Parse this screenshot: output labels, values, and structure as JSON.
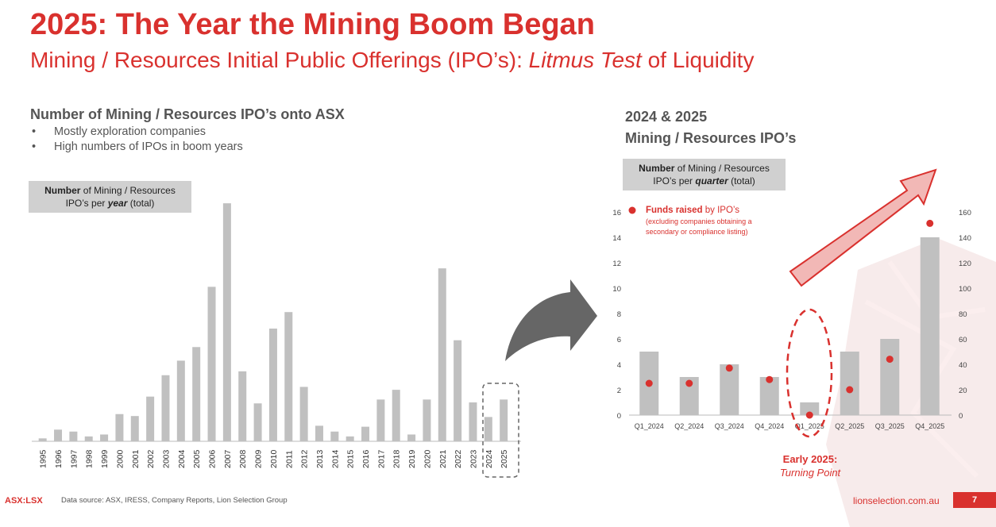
{
  "header": {
    "title": "2025: The Year the Mining Boom Began",
    "subtitle_pre": "Mining / Resources Initial Public Offerings (IPO’s): ",
    "subtitle_em": "Litmus Test",
    "subtitle_post": " of Liquidity"
  },
  "left_panel": {
    "heading": "Number of Mining / Resources IPO’s onto ASX",
    "bullets": [
      "Mostly exploration companies",
      "High numbers of IPOs in boom years"
    ],
    "label_bold": "Number",
    "label_mid": " of Mining / Resources",
    "label_line2_pre": "IPO’s per ",
    "label_line2_em": "year",
    "label_line2_post": " (total)"
  },
  "right_panel": {
    "heading_line1": "2024 & 2025",
    "heading_line2": "Mining / Resources IPO’s",
    "label_bold": "Number",
    "label_mid": " of Mining / Resources",
    "label_line2_pre": "IPO’s per ",
    "label_line2_em": "quarter",
    "label_line2_post": " (total)",
    "legend_bold": "Funds raised",
    "legend_rest": " by IPO’s",
    "legend_note1": "(excluding companies obtaining a",
    "legend_note2": "secondary or compliance listing)",
    "early_line1": "Early 2025:",
    "early_line2": "Turning Point"
  },
  "footer": {
    "ticker": "ASX:LSX",
    "source": "Data source: ASX, IRESS, Company Reports, Lion Selection Group",
    "website": "lionselection.com.au",
    "page": "7"
  },
  "colors": {
    "accent": "#d9312e",
    "bar": "#c0c0c0",
    "label_bg": "#d0d0d0",
    "arrow_dark": "#666666",
    "arrow_pink": "#f2b8b6"
  },
  "chart_data": [
    {
      "type": "bar",
      "title": "Number of Mining / Resources IPO’s per year (total)",
      "categories": [
        "1995",
        "1996",
        "1997",
        "1998",
        "1999",
        "2000",
        "2001",
        "2002",
        "2003",
        "2004",
        "2005",
        "2006",
        "2007",
        "2008",
        "2009",
        "2010",
        "2011",
        "2012",
        "2013",
        "2014",
        "2015",
        "2016",
        "2017",
        "2018",
        "2019",
        "2020",
        "2021",
        "2022",
        "2023",
        "2024",
        "2025"
      ],
      "values": [
        3,
        12,
        10,
        5,
        7,
        28,
        26,
        46,
        68,
        83,
        97,
        159,
        245,
        72,
        39,
        116,
        133,
        56,
        16,
        10,
        5,
        15,
        43,
        53,
        7,
        43,
        178,
        104,
        40,
        25,
        43
      ],
      "ylim": [
        0,
        250
      ],
      "grid": false,
      "highlight": [
        "2024",
        "2025"
      ]
    },
    {
      "type": "bar+scatter",
      "title": "Number of Mining / Resources IPO’s per quarter (total)",
      "categories": [
        "Q1_2024",
        "Q2_2024",
        "Q3_2024",
        "Q4_2024",
        "Q1_2025",
        "Q2_2025",
        "Q3_2025",
        "Q4_2025"
      ],
      "series": [
        {
          "name": "IPO count",
          "axis": "left",
          "values": [
            5,
            3,
            4,
            3,
            1,
            5,
            6,
            14
          ]
        },
        {
          "name": "Funds raised by IPO’s",
          "axis": "right",
          "values": [
            25,
            25,
            37,
            28,
            0,
            20,
            44,
            151
          ]
        }
      ],
      "left_ticks": [
        0,
        2,
        4,
        6,
        8,
        10,
        12,
        14,
        16
      ],
      "right_ticks": [
        0,
        20,
        40,
        60,
        80,
        100,
        120,
        140,
        160
      ],
      "ylim_left": [
        0,
        16
      ],
      "ylim_right": [
        0,
        160
      ],
      "highlight": [
        "Q1_2025"
      ]
    }
  ]
}
